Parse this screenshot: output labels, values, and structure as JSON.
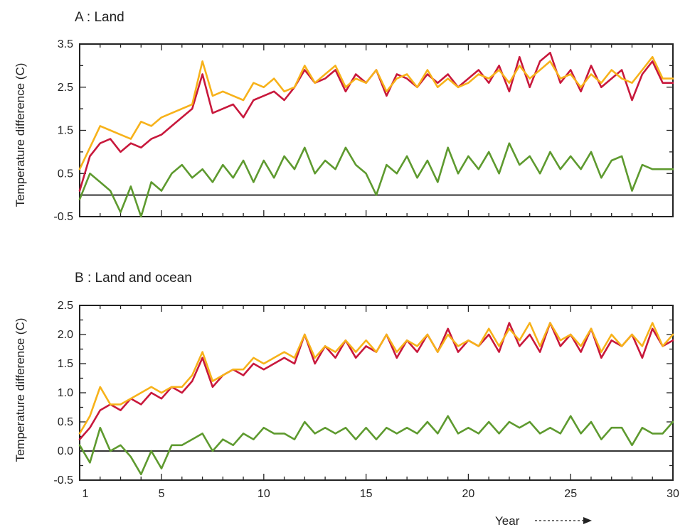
{
  "figure": {
    "xlabel": "Year",
    "x_ticks": [
      1,
      5,
      10,
      15,
      20,
      25,
      30
    ],
    "x_range": [
      1,
      30
    ]
  },
  "colors": {
    "red_series": "#c8183c",
    "orange_series": "#f7b21a",
    "green_series": "#5e9a2f",
    "zero_line": "#333333",
    "frame": "#222222"
  },
  "chart_data": [
    {
      "type": "line",
      "title": "A :  Land",
      "ylabel": "Temperature difference (C)",
      "ylim": [
        -0.5,
        3.5
      ],
      "y_ticks": [
        -0.5,
        0.5,
        1.5,
        2.5,
        3.5
      ],
      "xlim": [
        1,
        30
      ],
      "x_ticks": [
        1,
        5,
        10,
        15,
        20,
        25,
        30
      ],
      "zero_line": 0,
      "series": [
        {
          "color": "#c8183c",
          "x": [
            1,
            1.5,
            2,
            2.5,
            3,
            3.5,
            4,
            4.5,
            5,
            5.5,
            6,
            6.5,
            7,
            7.5,
            8,
            8.5,
            9,
            9.5,
            10,
            10.5,
            11,
            11.5,
            12,
            12.5,
            13,
            13.5,
            14,
            14.5,
            15,
            15.5,
            16,
            16.5,
            17,
            17.5,
            18,
            18.5,
            19,
            19.5,
            20,
            20.5,
            21,
            21.5,
            22,
            22.5,
            23,
            23.5,
            24,
            24.5,
            25,
            25.5,
            26,
            26.5,
            27,
            27.5,
            28,
            28.5,
            29,
            29.5,
            30
          ],
          "y": [
            0.1,
            0.9,
            1.2,
            1.3,
            1.0,
            1.2,
            1.1,
            1.3,
            1.4,
            1.6,
            1.8,
            2.0,
            2.8,
            1.9,
            2.0,
            2.1,
            1.8,
            2.2,
            2.3,
            2.4,
            2.2,
            2.5,
            2.9,
            2.6,
            2.7,
            2.9,
            2.4,
            2.8,
            2.6,
            2.9,
            2.3,
            2.8,
            2.7,
            2.5,
            2.8,
            2.6,
            2.8,
            2.5,
            2.7,
            2.9,
            2.6,
            3.0,
            2.4,
            3.2,
            2.5,
            3.1,
            3.3,
            2.6,
            2.9,
            2.4,
            3.0,
            2.5,
            2.7,
            2.9,
            2.2,
            2.8,
            3.1,
            2.6,
            2.6
          ]
        },
        {
          "color": "#f7b21a",
          "x": [
            1,
            1.5,
            2,
            2.5,
            3,
            3.5,
            4,
            4.5,
            5,
            5.5,
            6,
            6.5,
            7,
            7.5,
            8,
            8.5,
            9,
            9.5,
            10,
            10.5,
            11,
            11.5,
            12,
            12.5,
            13,
            13.5,
            14,
            14.5,
            15,
            15.5,
            16,
            16.5,
            17,
            17.5,
            18,
            18.5,
            19,
            19.5,
            20,
            20.5,
            21,
            21.5,
            22,
            22.5,
            23,
            23.5,
            24,
            24.5,
            25,
            25.5,
            26,
            26.5,
            27,
            27.5,
            28,
            28.5,
            29,
            29.5,
            30
          ],
          "y": [
            0.6,
            1.1,
            1.6,
            1.5,
            1.4,
            1.3,
            1.7,
            1.6,
            1.8,
            1.9,
            2.0,
            2.1,
            3.1,
            2.3,
            2.4,
            2.3,
            2.2,
            2.6,
            2.5,
            2.7,
            2.4,
            2.5,
            3.0,
            2.6,
            2.8,
            3.0,
            2.5,
            2.7,
            2.6,
            2.9,
            2.4,
            2.7,
            2.8,
            2.5,
            2.9,
            2.5,
            2.7,
            2.5,
            2.6,
            2.8,
            2.7,
            2.9,
            2.6,
            3.0,
            2.7,
            2.9,
            3.1,
            2.7,
            2.8,
            2.5,
            2.8,
            2.6,
            2.9,
            2.7,
            2.6,
            2.9,
            3.2,
            2.7,
            2.7
          ]
        },
        {
          "color": "#5e9a2f",
          "x": [
            1,
            1.5,
            2,
            2.5,
            3,
            3.5,
            4,
            4.5,
            5,
            5.5,
            6,
            6.5,
            7,
            7.5,
            8,
            8.5,
            9,
            9.5,
            10,
            10.5,
            11,
            11.5,
            12,
            12.5,
            13,
            13.5,
            14,
            14.5,
            15,
            15.5,
            16,
            16.5,
            17,
            17.5,
            18,
            18.5,
            19,
            19.5,
            20,
            20.5,
            21,
            21.5,
            22,
            22.5,
            23,
            23.5,
            24,
            24.5,
            25,
            25.5,
            26,
            26.5,
            27,
            27.5,
            28,
            28.5,
            29,
            29.5,
            30
          ],
          "y": [
            -0.1,
            0.5,
            0.3,
            0.1,
            -0.4,
            0.2,
            -0.5,
            0.3,
            0.1,
            0.5,
            0.7,
            0.4,
            0.6,
            0.3,
            0.7,
            0.4,
            0.8,
            0.3,
            0.8,
            0.4,
            0.9,
            0.6,
            1.1,
            0.5,
            0.8,
            0.6,
            1.1,
            0.7,
            0.5,
            0.0,
            0.7,
            0.5,
            0.9,
            0.4,
            0.8,
            0.3,
            1.1,
            0.5,
            0.9,
            0.6,
            1.0,
            0.5,
            1.2,
            0.7,
            0.9,
            0.5,
            1.0,
            0.6,
            0.9,
            0.6,
            1.0,
            0.4,
            0.8,
            0.9,
            0.1,
            0.7,
            0.6,
            0.6,
            0.6
          ]
        }
      ]
    },
    {
      "type": "line",
      "title": "B : Land and ocean",
      "ylabel": "Temperature difference (C)",
      "ylim": [
        -0.5,
        2.5
      ],
      "y_ticks": [
        -0.5,
        0.0,
        0.5,
        1.0,
        1.5,
        2.0,
        2.5
      ],
      "xlim": [
        1,
        30
      ],
      "x_ticks": [
        1,
        5,
        10,
        15,
        20,
        25,
        30
      ],
      "zero_line": 0,
      "series": [
        {
          "color": "#c8183c",
          "x": [
            1,
            1.5,
            2,
            2.5,
            3,
            3.5,
            4,
            4.5,
            5,
            5.5,
            6,
            6.5,
            7,
            7.5,
            8,
            8.5,
            9,
            9.5,
            10,
            10.5,
            11,
            11.5,
            12,
            12.5,
            13,
            13.5,
            14,
            14.5,
            15,
            15.5,
            16,
            16.5,
            17,
            17.5,
            18,
            18.5,
            19,
            19.5,
            20,
            20.5,
            21,
            21.5,
            22,
            22.5,
            23,
            23.5,
            24,
            24.5,
            25,
            25.5,
            26,
            26.5,
            27,
            27.5,
            28,
            28.5,
            29,
            29.5,
            30
          ],
          "y": [
            0.2,
            0.4,
            0.7,
            0.8,
            0.7,
            0.9,
            0.8,
            1.0,
            0.9,
            1.1,
            1.0,
            1.2,
            1.6,
            1.1,
            1.3,
            1.4,
            1.3,
            1.5,
            1.4,
            1.5,
            1.6,
            1.5,
            2.0,
            1.5,
            1.8,
            1.6,
            1.9,
            1.6,
            1.8,
            1.7,
            2.0,
            1.6,
            1.9,
            1.7,
            2.0,
            1.7,
            2.1,
            1.7,
            1.9,
            1.8,
            2.0,
            1.7,
            2.2,
            1.8,
            2.0,
            1.7,
            2.2,
            1.8,
            2.0,
            1.7,
            2.1,
            1.6,
            1.9,
            1.8,
            2.0,
            1.6,
            2.1,
            1.8,
            1.9
          ]
        },
        {
          "color": "#f7b21a",
          "x": [
            1,
            1.5,
            2,
            2.5,
            3,
            3.5,
            4,
            4.5,
            5,
            5.5,
            6,
            6.5,
            7,
            7.5,
            8,
            8.5,
            9,
            9.5,
            10,
            10.5,
            11,
            11.5,
            12,
            12.5,
            13,
            13.5,
            14,
            14.5,
            15,
            15.5,
            16,
            16.5,
            17,
            17.5,
            18,
            18.5,
            19,
            19.5,
            20,
            20.5,
            21,
            21.5,
            22,
            22.5,
            23,
            23.5,
            24,
            24.5,
            25,
            25.5,
            26,
            26.5,
            27,
            27.5,
            28,
            28.5,
            29,
            29.5,
            30
          ],
          "y": [
            0.3,
            0.6,
            1.1,
            0.8,
            0.8,
            0.9,
            1.0,
            1.1,
            1.0,
            1.1,
            1.1,
            1.3,
            1.7,
            1.2,
            1.3,
            1.4,
            1.4,
            1.6,
            1.5,
            1.6,
            1.7,
            1.6,
            2.0,
            1.6,
            1.8,
            1.7,
            1.9,
            1.7,
            1.9,
            1.7,
            2.0,
            1.7,
            1.9,
            1.8,
            2.0,
            1.7,
            2.0,
            1.8,
            1.9,
            1.8,
            2.1,
            1.8,
            2.1,
            1.9,
            2.2,
            1.8,
            2.2,
            1.9,
            2.0,
            1.8,
            2.1,
            1.7,
            2.0,
            1.8,
            2.0,
            1.8,
            2.2,
            1.8,
            2.0
          ]
        },
        {
          "color": "#5e9a2f",
          "x": [
            1,
            1.5,
            2,
            2.5,
            3,
            3.5,
            4,
            4.5,
            5,
            5.5,
            6,
            6.5,
            7,
            7.5,
            8,
            8.5,
            9,
            9.5,
            10,
            10.5,
            11,
            11.5,
            12,
            12.5,
            13,
            13.5,
            14,
            14.5,
            15,
            15.5,
            16,
            16.5,
            17,
            17.5,
            18,
            18.5,
            19,
            19.5,
            20,
            20.5,
            21,
            21.5,
            22,
            22.5,
            23,
            23.5,
            24,
            24.5,
            25,
            25.5,
            26,
            26.5,
            27,
            27.5,
            28,
            28.5,
            29,
            29.5,
            30
          ],
          "y": [
            0.1,
            -0.2,
            0.4,
            0.0,
            0.1,
            -0.1,
            -0.4,
            0.0,
            -0.3,
            0.1,
            0.1,
            0.2,
            0.3,
            0.0,
            0.2,
            0.1,
            0.3,
            0.2,
            0.4,
            0.3,
            0.3,
            0.2,
            0.5,
            0.3,
            0.4,
            0.3,
            0.4,
            0.2,
            0.4,
            0.2,
            0.4,
            0.3,
            0.4,
            0.3,
            0.5,
            0.3,
            0.6,
            0.3,
            0.4,
            0.3,
            0.5,
            0.3,
            0.5,
            0.4,
            0.5,
            0.3,
            0.4,
            0.3,
            0.6,
            0.3,
            0.5,
            0.2,
            0.4,
            0.4,
            0.1,
            0.4,
            0.3,
            0.3,
            0.5
          ]
        }
      ]
    }
  ]
}
